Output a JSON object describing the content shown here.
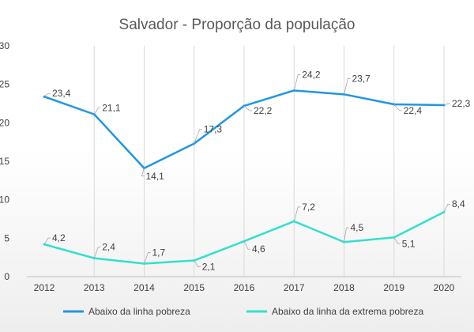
{
  "chart_data": {
    "type": "line",
    "title": "Salvador - Proporção da população",
    "xlabel": "",
    "ylabel": "",
    "categories": [
      "2012",
      "2013",
      "2014",
      "2015",
      "2016",
      "2017",
      "2018",
      "2019",
      "2020"
    ],
    "ylim": [
      0,
      30
    ],
    "yticks": [
      "0",
      "5",
      "10",
      "15",
      "20",
      "25",
      "30"
    ],
    "grid": "vertical",
    "legend": "bottom",
    "series": [
      {
        "name": "Abaixo da linha pobreza",
        "color": "#2196e3",
        "values": [
          23.4,
          21.1,
          14.1,
          17.3,
          22.2,
          24.2,
          23.7,
          22.4,
          22.3
        ],
        "labels": [
          "23,4",
          "21,1",
          "14,1",
          "17,3",
          "22,2",
          "24,2",
          "23,7",
          "22,4",
          "22,3"
        ]
      },
      {
        "name": "Abaixo da linha da extrema pobreza",
        "color": "#33e0cc",
        "values": [
          4.2,
          2.4,
          1.7,
          2.1,
          4.6,
          7.2,
          4.5,
          5.1,
          8.4
        ],
        "labels": [
          "4,2",
          "2,4",
          "1,7",
          "2,1",
          "4,6",
          "7,2",
          "4,5",
          "5,1",
          "8,4"
        ]
      }
    ]
  }
}
